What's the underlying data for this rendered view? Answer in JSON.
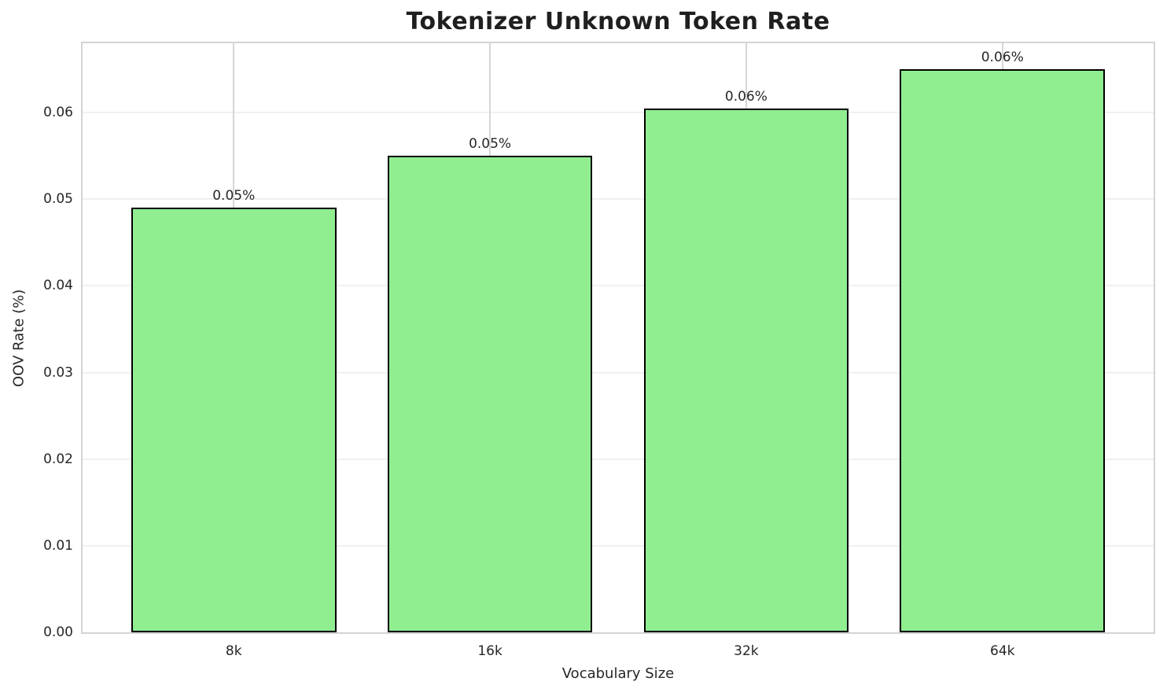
{
  "chart_data": {
    "type": "bar",
    "title": "Tokenizer Unknown Token Rate",
    "xlabel": "Vocabulary Size",
    "ylabel": "OOV Rate (%)",
    "categories": [
      "8k",
      "16k",
      "32k",
      "64k"
    ],
    "values": [
      0.049,
      0.055,
      0.0605,
      0.065
    ],
    "bar_labels": [
      "0.05%",
      "0.05%",
      "0.06%",
      "0.06%"
    ],
    "ylim": [
      0,
      0.068
    ],
    "yticks": [
      0,
      0.01,
      0.02,
      0.03,
      0.04,
      0.05,
      0.06
    ],
    "ytick_labels": [
      "0.00",
      "0.01",
      "0.02",
      "0.03",
      "0.04",
      "0.05",
      "0.06"
    ],
    "grid": true,
    "legend": "none",
    "bar_width_fraction": 0.8,
    "colors": {
      "bar_fill": "#90EE90",
      "bar_edge": "#000000",
      "background": "#ffffff",
      "ygrid": "#f0f0f0",
      "xgrid": "#d6d6d6",
      "spine": "#d4d4d4",
      "text": "#262626",
      "title_text": "#1f1f1f"
    }
  }
}
